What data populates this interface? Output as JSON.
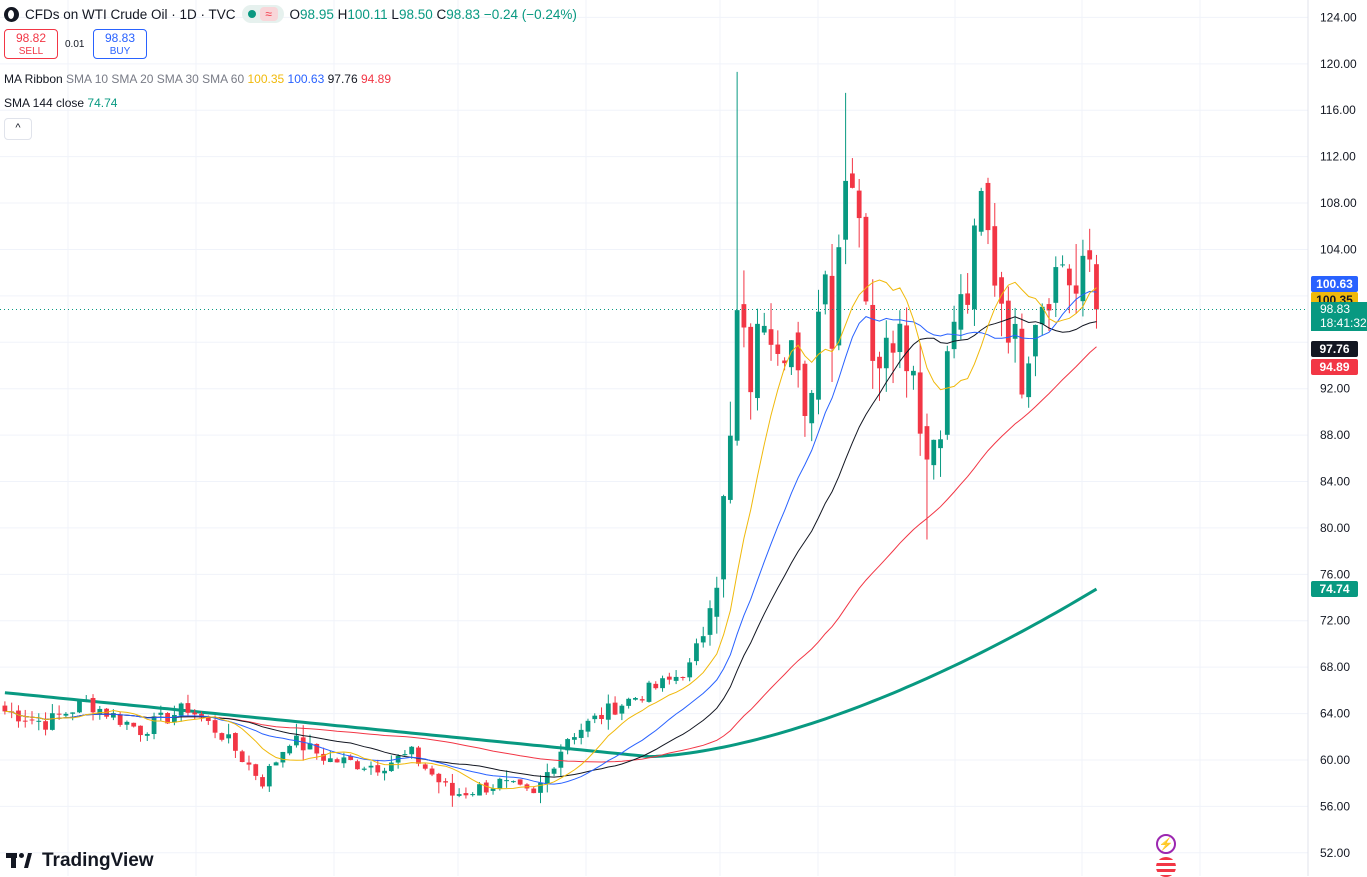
{
  "header": {
    "title": "CFDs on WTI Crude Oil · 1D · TVC",
    "ohlc": [
      {
        "label": "O",
        "value": "98.95"
      },
      {
        "label": "H",
        "value": "100.11"
      },
      {
        "label": "L",
        "value": "98.50"
      },
      {
        "label": "C",
        "value": "98.83"
      }
    ],
    "change": "−0.24 (−0.24%)",
    "market_status_icon": "market-open-dot-icon",
    "wave_icon": "≈"
  },
  "trade": {
    "sell_price": "98.82",
    "sell_label": "SELL",
    "spread": "0.01",
    "buy_price": "98.83",
    "buy_label": "BUY"
  },
  "indicators": {
    "ribbon": {
      "name": "MA Ribbon",
      "params": "SMA 10 SMA 20 SMA 30 SMA 60",
      "values": [
        {
          "value": "100.35",
          "color": "#f0b90b"
        },
        {
          "value": "100.63",
          "color": "#2962ff"
        },
        {
          "value": "97.76",
          "color": "#131722"
        },
        {
          "value": "94.89",
          "color": "#f23645"
        }
      ]
    },
    "sma144": {
      "name": "SMA 144 close",
      "value": "74.74",
      "color": "#089981"
    },
    "collapse_icon": "^"
  },
  "price_scale": {
    "ticks": [
      "124.00",
      "120.00",
      "116.00",
      "112.00",
      "108.00",
      "104.00",
      "92.00",
      "88.00",
      "84.00",
      "80.00",
      "76.00",
      "72.00",
      "68.00",
      "64.00",
      "60.00",
      "56.00",
      "52.00"
    ],
    "labels": [
      {
        "text": "100.63",
        "color": "#2962ff",
        "value": 100.63
      },
      {
        "text": "100.35",
        "color": "#f0b90b",
        "value": 100.35
      },
      {
        "text": "97.76",
        "color": "#131722",
        "value": 97.76
      },
      {
        "text": "94.89",
        "color": "#f23645",
        "value": 94.89
      },
      {
        "text": "74.74",
        "color": "#089981",
        "value": 74.74
      }
    ],
    "last_price": "98.83",
    "countdown": "18:41:32"
  },
  "branding": {
    "logo_text": "TradingView"
  },
  "colors": {
    "up": "#089981",
    "down": "#f23645",
    "grid": "#f0f3fa"
  },
  "chart_data": {
    "type": "candlestick",
    "symbol": "CFDs on WTI Crude Oil",
    "interval": "1D",
    "ylim": [
      50.0,
      125.5
    ],
    "y_ticks": [
      52,
      56,
      60,
      64,
      68,
      72,
      76,
      80,
      84,
      88,
      92,
      96,
      100,
      104,
      108,
      112,
      116,
      120,
      124
    ],
    "bars_visible": 170,
    "anchors": [
      [
        0,
        64.2
      ],
      [
        6,
        63.2
      ],
      [
        12,
        65.0
      ],
      [
        20,
        62.6
      ],
      [
        27,
        64.5
      ],
      [
        32,
        62.2
      ],
      [
        38,
        58.2
      ],
      [
        42,
        61.8
      ],
      [
        48,
        60.0
      ],
      [
        55,
        59.5
      ],
      [
        60,
        60.5
      ],
      [
        66,
        57.0
      ],
      [
        73,
        58.0
      ],
      [
        78,
        56.8
      ],
      [
        83,
        62.0
      ],
      [
        90,
        64.6
      ],
      [
        98,
        66.8
      ],
      [
        101,
        68.0
      ],
      [
        103,
        71.0
      ],
      [
        105,
        76.5
      ],
      [
        107,
        87.0
      ],
      [
        108,
        98.0
      ],
      [
        110,
        93.0
      ],
      [
        112,
        99.0
      ],
      [
        114,
        97.0
      ],
      [
        116,
        96.0
      ],
      [
        118,
        88.0
      ],
      [
        121,
        104.0
      ],
      [
        122,
        96.5
      ],
      [
        124,
        112.0
      ],
      [
        126,
        108.0
      ],
      [
        128,
        93.0
      ],
      [
        130,
        98.0
      ],
      [
        132,
        97.0
      ],
      [
        134,
        94.0
      ],
      [
        136,
        86.0
      ],
      [
        138,
        90.0
      ],
      [
        140,
        98.0
      ],
      [
        142,
        100.0
      ],
      [
        144,
        108.0
      ],
      [
        146,
        102.0
      ],
      [
        148,
        98.0
      ],
      [
        150,
        93.5
      ],
      [
        152,
        99.0
      ],
      [
        154,
        101.0
      ],
      [
        156,
        103.0
      ],
      [
        158,
        100.0
      ],
      [
        160,
        103.0
      ],
      [
        161,
        99.5
      ]
    ],
    "moving_averages": [
      {
        "name": "SMA 10",
        "color": "#f0b90b",
        "last": 100.35
      },
      {
        "name": "SMA 20",
        "color": "#2962ff",
        "last": 100.63
      },
      {
        "name": "SMA 30",
        "color": "#131722",
        "last": 97.76
      },
      {
        "name": "SMA 60",
        "color": "#f23645",
        "last": 94.89
      },
      {
        "name": "SMA 144 close",
        "color": "#089981",
        "last": 74.74
      }
    ],
    "last_close": 98.83
  }
}
